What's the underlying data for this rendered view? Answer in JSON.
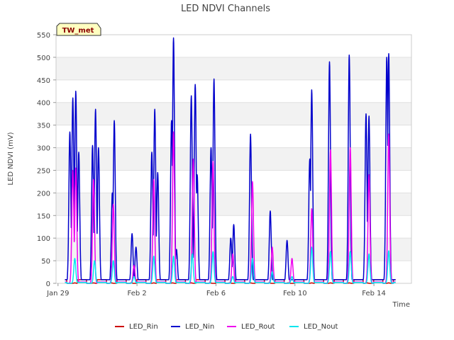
{
  "chart_data": {
    "type": "line",
    "title": "LED NDVI Channels",
    "xlabel": "Time",
    "ylabel": "LED NDVI (mV)",
    "badge": "TW_met",
    "xlim": [
      -0.1,
      17.9
    ],
    "ylim": [
      0,
      550
    ],
    "yticks": [
      0,
      50,
      100,
      150,
      200,
      250,
      300,
      350,
      400,
      450,
      500,
      550
    ],
    "xticks": [
      {
        "label": "Jan 29",
        "day": 0
      },
      {
        "label": "Feb 2",
        "day": 4
      },
      {
        "label": "Feb 6",
        "day": 8
      },
      {
        "label": "Feb 10",
        "day": 12
      },
      {
        "label": "Feb 14",
        "day": 16
      }
    ],
    "grid_bands": true,
    "legend_position": "bottom",
    "series": [
      {
        "name": "LED_Rin",
        "color": "#cc0000",
        "baseline": 8,
        "night_floor": 0,
        "peaks": [
          [
            0.85,
            1
          ],
          [
            1.8,
            1
          ],
          [
            2.7,
            1
          ],
          [
            3.7,
            1
          ],
          [
            4.85,
            1
          ],
          [
            5.8,
            1
          ],
          [
            6.75,
            1
          ],
          [
            7.7,
            1
          ],
          [
            8.7,
            1
          ],
          [
            9.75,
            1
          ],
          [
            10.7,
            1
          ],
          [
            11.65,
            1
          ],
          [
            12.85,
            1
          ],
          [
            13.8,
            1
          ],
          [
            14.75,
            1
          ],
          [
            15.65,
            1
          ],
          [
            16.75,
            1
          ]
        ]
      },
      {
        "name": "LED_Nin",
        "color": "#0000cc",
        "baseline": 8,
        "night_floor": 8,
        "peaks": [
          [
            0.6,
            335
          ],
          [
            0.75,
            410
          ],
          [
            0.9,
            425
          ],
          [
            1.05,
            290
          ],
          [
            1.75,
            305
          ],
          [
            1.9,
            385
          ],
          [
            2.05,
            300
          ],
          [
            2.75,
            200
          ],
          [
            2.85,
            360
          ],
          [
            3.75,
            110
          ],
          [
            3.95,
            80
          ],
          [
            4.75,
            290
          ],
          [
            4.9,
            385
          ],
          [
            5.05,
            245
          ],
          [
            5.75,
            360
          ],
          [
            5.85,
            543
          ],
          [
            6.0,
            75
          ],
          [
            6.75,
            415
          ],
          [
            6.95,
            440
          ],
          [
            7.05,
            240
          ],
          [
            7.75,
            300
          ],
          [
            7.9,
            452
          ],
          [
            8.75,
            100
          ],
          [
            8.9,
            130
          ],
          [
            9.75,
            330
          ],
          [
            10.75,
            160
          ],
          [
            11.6,
            95
          ],
          [
            12.75,
            275
          ],
          [
            12.85,
            428
          ],
          [
            13.75,
            490
          ],
          [
            14.75,
            505
          ],
          [
            15.6,
            375
          ],
          [
            15.75,
            370
          ],
          [
            16.65,
            500
          ],
          [
            16.75,
            508
          ]
        ]
      },
      {
        "name": "LED_Rout",
        "color": "#ee00ee",
        "baseline": 3,
        "night_floor": 0,
        "peaks": [
          [
            0.75,
            250
          ],
          [
            0.9,
            255
          ],
          [
            1.8,
            230
          ],
          [
            2.8,
            175
          ],
          [
            3.85,
            40
          ],
          [
            4.85,
            230
          ],
          [
            5.85,
            335
          ],
          [
            6.85,
            275
          ],
          [
            7.85,
            270
          ],
          [
            8.85,
            65
          ],
          [
            9.85,
            225
          ],
          [
            10.85,
            80
          ],
          [
            11.85,
            55
          ],
          [
            12.85,
            165
          ],
          [
            13.8,
            295
          ],
          [
            14.8,
            300
          ],
          [
            15.75,
            240
          ],
          [
            16.75,
            330
          ]
        ]
      },
      {
        "name": "LED_Nout",
        "color": "#00e5ee",
        "baseline": 2,
        "night_floor": 0,
        "peaks": [
          [
            0.85,
            55
          ],
          [
            1.85,
            50
          ],
          [
            2.8,
            50
          ],
          [
            3.85,
            15
          ],
          [
            4.85,
            60
          ],
          [
            5.85,
            60
          ],
          [
            6.8,
            65
          ],
          [
            7.85,
            70
          ],
          [
            8.85,
            15
          ],
          [
            9.85,
            55
          ],
          [
            10.85,
            25
          ],
          [
            11.85,
            15
          ],
          [
            12.85,
            80
          ],
          [
            13.8,
            70
          ],
          [
            14.8,
            70
          ],
          [
            15.75,
            65
          ],
          [
            16.75,
            72
          ]
        ]
      }
    ]
  }
}
